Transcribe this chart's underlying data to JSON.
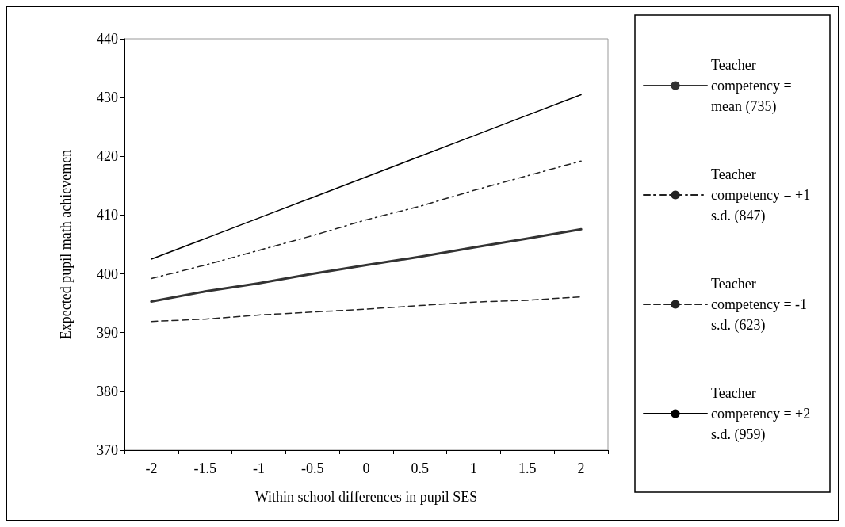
{
  "chart_data": {
    "type": "line",
    "xlabel": "Within school differences in pupil SES",
    "ylabel": "Expected pupil math achievemen",
    "categories": [
      "-2",
      "-1.5",
      "-1",
      "-0.5",
      "0",
      "0.5",
      "1",
      "1.5",
      "2"
    ],
    "series": [
      {
        "name": "Teacher competency = mean (735)",
        "color": "#333333",
        "line_style": "solid",
        "values": [
          395.3,
          397,
          398.4,
          400,
          401.5,
          402.9,
          404.5,
          406,
          407.6
        ]
      },
      {
        "name": "Teacher competency = +1 s.d. (847)",
        "color": "#222222",
        "line_style": "dotted",
        "values": [
          399.2,
          401.5,
          404,
          406.5,
          409.2,
          411.5,
          414.2,
          416.7,
          419.2
        ]
      },
      {
        "name": "Teacher competency = -1 s.d. (623)",
        "color": "#222222",
        "line_style": "dashed",
        "values": [
          391.9,
          392.3,
          393,
          393.5,
          394,
          394.6,
          395.2,
          395.5,
          396.1
        ]
      },
      {
        "name": "Teacher competency = +2 s.d. (959)",
        "color": "#000000",
        "line_style": "solid",
        "values": [
          402.5,
          406,
          409.5,
          413,
          416.5,
          420,
          423.5,
          427,
          430.5
        ]
      }
    ],
    "ylim": [
      370,
      440
    ],
    "yticks": [
      370,
      380,
      390,
      400,
      410,
      420,
      430,
      440
    ],
    "grid": false,
    "legend": "right",
    "marker": "none"
  }
}
